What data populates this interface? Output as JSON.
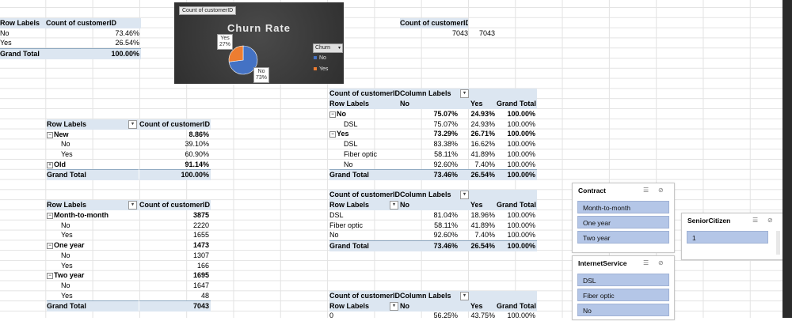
{
  "table1": {
    "h_rows": "Row Labels",
    "h_count": "Count of customerID",
    "rows": [
      {
        "label": "No",
        "value": "73.46%"
      },
      {
        "label": "Yes",
        "value": "26.54%"
      }
    ],
    "total_label": "Grand Total",
    "total_value": "100.00%"
  },
  "chart": {
    "tag": "Count of customerID",
    "title": "Churn Rate",
    "legend_title": "Churn",
    "legend_items": [
      "No",
      "Yes"
    ],
    "labels": [
      {
        "name": "Yes",
        "pct": "27%"
      },
      {
        "name": "No",
        "pct": "73%"
      }
    ],
    "colors": {
      "No": "#4472c4",
      "Yes": "#ed7d31"
    }
  },
  "chart_data": {
    "type": "pie",
    "title": "Churn Rate",
    "categories": [
      "No",
      "Yes"
    ],
    "values": [
      73,
      27
    ]
  },
  "table_count": {
    "h_count": "Count of customerID",
    "value1": "7043",
    "value2": "7043"
  },
  "table2": {
    "h_rows": "Row Labels",
    "h_count": "Count of customerID",
    "rows": [
      {
        "label": "New",
        "value": "8.86%",
        "level": 0,
        "exp": "⊟"
      },
      {
        "label": "No",
        "value": "39.10%",
        "level": 1
      },
      {
        "label": "Yes",
        "value": "60.90%",
        "level": 1
      },
      {
        "label": "Old",
        "value": "91.14%",
        "level": 0,
        "exp": "⊞"
      }
    ],
    "total_label": "Grand Total",
    "total_value": "100.00%"
  },
  "table3": {
    "h_rows": "Row Labels",
    "h_count": "Count of customerID",
    "rows": [
      {
        "label": "Month-to-month",
        "value": "3875",
        "level": 0,
        "exp": "⊟"
      },
      {
        "label": "No",
        "value": "2220",
        "level": 1
      },
      {
        "label": "Yes",
        "value": "1655",
        "level": 1
      },
      {
        "label": "One year",
        "value": "1473",
        "level": 0,
        "exp": "⊟"
      },
      {
        "label": "No",
        "value": "1307",
        "level": 1
      },
      {
        "label": "Yes",
        "value": "166",
        "level": 1
      },
      {
        "label": "Two year",
        "value": "1695",
        "level": 0,
        "exp": "⊟"
      },
      {
        "label": "No",
        "value": "1647",
        "level": 1
      },
      {
        "label": "Yes",
        "value": "48",
        "level": 1
      }
    ],
    "total_label": "Grand Total",
    "total_value": "7043"
  },
  "table4": {
    "h_count": "Count of customerID",
    "h_cols": "Column Labels",
    "h_rows": "Row Labels",
    "h_no": "No",
    "h_yes": "Yes",
    "h_total": "Grand Total",
    "rows": [
      {
        "label": "No",
        "no": "75.07%",
        "yes": "24.93%",
        "total": "100.00%",
        "level": 0,
        "exp": "⊟"
      },
      {
        "label": "DSL",
        "no": "75.07%",
        "yes": "24.93%",
        "total": "100.00%",
        "level": 1
      },
      {
        "label": "Yes",
        "no": "73.29%",
        "yes": "26.71%",
        "total": "100.00%",
        "level": 0,
        "exp": "⊟"
      },
      {
        "label": "DSL",
        "no": "83.38%",
        "yes": "16.62%",
        "total": "100.00%",
        "level": 1
      },
      {
        "label": "Fiber optic",
        "no": "58.11%",
        "yes": "41.89%",
        "total": "100.00%",
        "level": 1
      },
      {
        "label": "No",
        "no": "92.60%",
        "yes": "7.40%",
        "total": "100.00%",
        "level": 1
      }
    ],
    "grand": {
      "label": "Grand Total",
      "no": "73.46%",
      "yes": "26.54%",
      "total": "100.00%"
    }
  },
  "table5": {
    "h_count": "Count of customerID",
    "h_cols": "Column Labels",
    "h_rows": "Row Labels",
    "h_no": "No",
    "h_yes": "Yes",
    "h_total": "Grand Total",
    "rows": [
      {
        "label": "DSL",
        "no": "81.04%",
        "yes": "18.96%",
        "total": "100.00%"
      },
      {
        "label": "Fiber optic",
        "no": "58.11%",
        "yes": "41.89%",
        "total": "100.00%"
      },
      {
        "label": "No",
        "no": "92.60%",
        "yes": "7.40%",
        "total": "100.00%"
      }
    ],
    "grand": {
      "label": "Grand Total",
      "no": "73.46%",
      "yes": "26.54%",
      "total": "100.00%"
    }
  },
  "table6": {
    "h_count": "Count of customerID",
    "h_cols": "Column Labels",
    "h_rows": "Row Labels",
    "h_no": "No",
    "h_yes": "Yes",
    "h_total": "Grand Total",
    "rows": [
      {
        "label": "0",
        "no": "56.25%",
        "yes": "43.75%",
        "total": "100.00%"
      }
    ]
  },
  "slicer_contract": {
    "title": "Contract",
    "items": [
      "Month-to-month",
      "One year",
      "Two year"
    ]
  },
  "slicer_internet": {
    "title": "InternetService",
    "items": [
      "DSL",
      "Fiber optic",
      "No"
    ]
  },
  "slicer_senior": {
    "title": "SeniorCitizen",
    "items": [
      "1"
    ]
  },
  "icons": {
    "multiselect": "multi-select-icon",
    "clear": "clear-filter-icon",
    "dropdown": "dropdown-arrow-icon"
  }
}
